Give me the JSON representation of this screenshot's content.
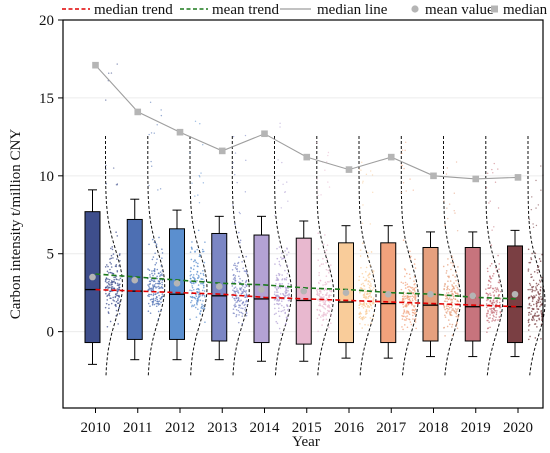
{
  "chart_data": {
    "type": "box",
    "xlabel": "Year",
    "ylabel": "Carbon intensity t/million CNY",
    "ylim": [
      -4.9,
      20
    ],
    "yticks": [
      0,
      5,
      10,
      15,
      20
    ],
    "categories": [
      "2010",
      "2011",
      "2012",
      "2013",
      "2014",
      "2015",
      "2016",
      "2017",
      "2018",
      "2019",
      "2020"
    ],
    "box_colors": [
      "#3e4e8c",
      "#4d6fb3",
      "#5b8fcf",
      "#7b86c4",
      "#b3a2d4",
      "#e8b8cf",
      "#f9cc9a",
      "#f1a27c",
      "#e6a07e",
      "#c7747d",
      "#7a3f43"
    ],
    "boxes": [
      {
        "whisker_low": -2.1,
        "q1": -0.7,
        "median": 2.7,
        "q3": 7.7,
        "whisker_high": 9.1
      },
      {
        "whisker_low": -1.8,
        "q1": -0.5,
        "median": 2.6,
        "q3": 7.2,
        "whisker_high": 8.5
      },
      {
        "whisker_low": -1.8,
        "q1": -0.5,
        "median": 2.4,
        "q3": 6.6,
        "whisker_high": 7.8
      },
      {
        "whisker_low": -1.8,
        "q1": -0.6,
        "median": 2.3,
        "q3": 6.3,
        "whisker_high": 7.4
      },
      {
        "whisker_low": -1.9,
        "q1": -0.7,
        "median": 2.1,
        "q3": 6.2,
        "whisker_high": 7.4
      },
      {
        "whisker_low": -1.9,
        "q1": -0.8,
        "median": 2.0,
        "q3": 6.0,
        "whisker_high": 7.1
      },
      {
        "whisker_low": -1.7,
        "q1": -0.7,
        "median": 1.9,
        "q3": 5.7,
        "whisker_high": 6.8
      },
      {
        "whisker_low": -1.7,
        "q1": -0.7,
        "median": 1.8,
        "q3": 5.7,
        "whisker_high": 6.8
      },
      {
        "whisker_low": -1.6,
        "q1": -0.6,
        "median": 1.7,
        "q3": 5.4,
        "whisker_high": 6.4
      },
      {
        "whisker_low": -1.6,
        "q1": -0.6,
        "median": 1.6,
        "q3": 5.4,
        "whisker_high": 6.4
      },
      {
        "whisker_low": -1.6,
        "q1": -0.7,
        "median": 1.6,
        "q3": 5.5,
        "whisker_high": 6.5
      }
    ],
    "series": [
      {
        "name": "median trend",
        "style": "dashed",
        "color": "#e00000",
        "values": [
          2.7,
          2.6,
          2.5,
          2.4,
          2.2,
          2.1,
          2.0,
          1.9,
          1.8,
          1.7,
          1.6
        ]
      },
      {
        "name": "mean trend",
        "style": "dashed",
        "color": "#1d7a1d",
        "values": [
          3.7,
          3.5,
          3.3,
          3.1,
          3.0,
          2.8,
          2.7,
          2.5,
          2.4,
          2.2,
          2.1
        ]
      },
      {
        "name": "median line",
        "style": "solid",
        "color": "#9e9e9e",
        "values": [
          17.1,
          14.1,
          12.8,
          11.6,
          12.7,
          11.2,
          10.4,
          11.2,
          10.0,
          9.8,
          9.9
        ]
      },
      {
        "name": "mean value",
        "style": "circle",
        "color": "#b5b5b5",
        "values": [
          3.5,
          3.3,
          3.1,
          2.9,
          2.7,
          2.6,
          2.5,
          2.4,
          2.4,
          2.3,
          2.4
        ]
      },
      {
        "name": "median",
        "style": "square",
        "color": "#b5b5b5",
        "values": [
          17.1,
          14.1,
          12.8,
          11.6,
          12.7,
          11.2,
          10.4,
          11.2,
          10.0,
          9.8,
          9.9
        ]
      }
    ],
    "density_peak": [
      1.0,
      1.0,
      1.0,
      1.0,
      1.0,
      1.0,
      1.0,
      1.0,
      1.0,
      1.0,
      1.0
    ],
    "legend": [
      "median trend",
      "mean trend",
      "median line",
      "mean value",
      "median"
    ],
    "legend_position": "top",
    "grid": true
  }
}
